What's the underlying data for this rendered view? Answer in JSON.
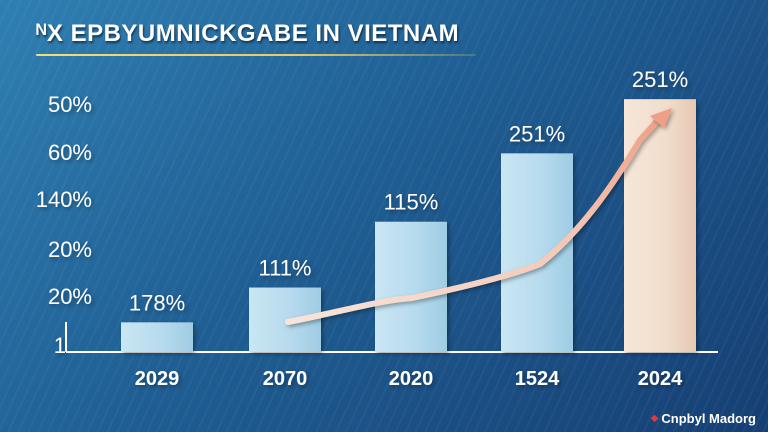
{
  "title": "ᴺX EPBYUMNICKGABE IN VIETNAM",
  "source": "Cnpbyl Madorg",
  "colors": {
    "accent": "#e8c864",
    "arrow": "#f0b3a0",
    "source_dot": "#e53935"
  },
  "chart_data": {
    "type": "bar",
    "title": "ᴺX EPBYUMNICKGABE IN VIETNAM",
    "xlabel": "",
    "ylabel": "",
    "y_tick_labels": [
      "50%",
      "60%",
      "140%",
      "20%",
      "20%",
      "1"
    ],
    "categories": [
      "2029",
      "2070",
      "2020",
      "1524",
      "2024"
    ],
    "values": [
      178,
      111,
      115,
      251,
      251
    ],
    "value_labels": [
      "178%",
      "111%",
      "115%",
      "251%",
      "251%"
    ],
    "bar_levels": [
      0.115,
      0.25,
      0.505,
      0.77,
      0.98
    ],
    "trend_line": true,
    "trend_arrow": true,
    "grid": false,
    "legend": "none"
  }
}
